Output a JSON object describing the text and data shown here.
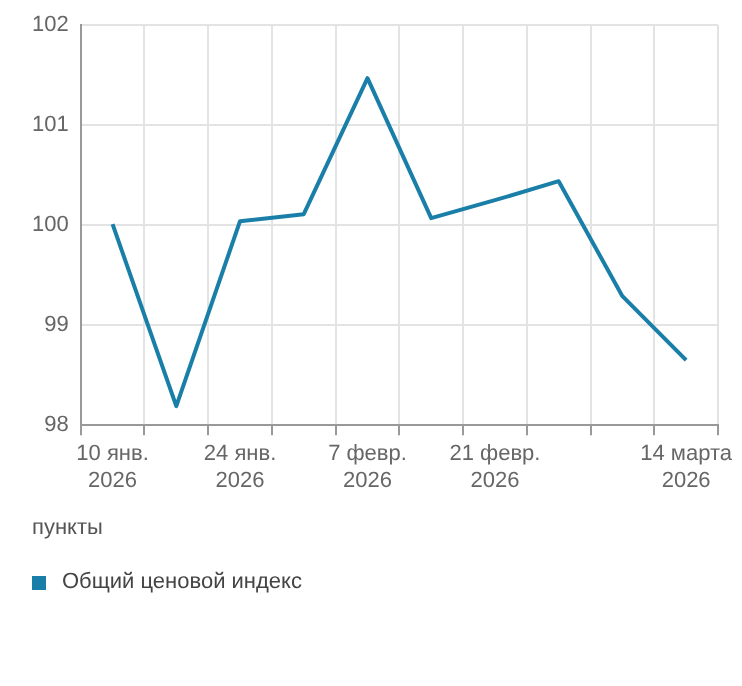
{
  "chart_data": {
    "type": "line",
    "ylabel": "пункты",
    "categories": [
      "10 янв. 2026",
      null,
      "24 янв. 2026",
      null,
      "7 февр. 2026",
      null,
      "21 февр. 2026",
      null,
      null,
      "14 марта 2026"
    ],
    "series": [
      {
        "name": "Общий ценовой индекс",
        "color": "#1a7fa8",
        "values": [
          100.01,
          98.19,
          100.04,
          100.11,
          101.47,
          100.07,
          100.25,
          100.44,
          99.29,
          98.65
        ]
      }
    ],
    "ylim": [
      98,
      102
    ],
    "yticks": [
      98,
      99,
      100,
      101,
      102
    ],
    "grid": true,
    "legend": "bottom left",
    "marker": "none",
    "line_style": "solid"
  }
}
